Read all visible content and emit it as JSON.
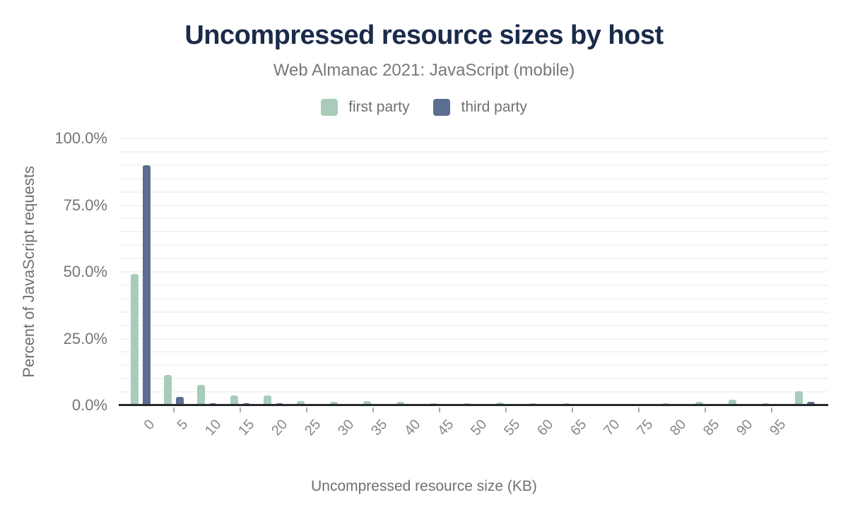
{
  "chart_data": {
    "type": "bar",
    "title": "Uncompressed resource sizes by host",
    "subtitle": "Web Almanac 2021: JavaScript (mobile)",
    "xlabel": "Uncompressed resource size (KB)",
    "ylabel": "Percent of JavaScript requests",
    "categories": [
      "0",
      "5",
      "10",
      "15",
      "20",
      "25",
      "30",
      "35",
      "40",
      "45",
      "50",
      "55",
      "60",
      "65",
      "70",
      "75",
      "80",
      "85",
      "90",
      "95",
      ""
    ],
    "series": [
      {
        "key": "first-party",
        "name": "first party",
        "color": "#a8ccb9",
        "values": [
          49.2,
          11.5,
          7.7,
          3.8,
          3.6,
          1.7,
          1.2,
          1.6,
          1.2,
          0.9,
          0.8,
          1.0,
          0.9,
          0.8,
          0.1,
          0.1,
          0.8,
          1.2,
          2.1,
          0.8,
          5.3
        ]
      },
      {
        "key": "third-party",
        "name": "third party",
        "color": "#5b6d90",
        "values": [
          89.9,
          3.2,
          0.9,
          0.8,
          0.7,
          0.2,
          0.1,
          0.1,
          0.1,
          0.1,
          0.1,
          0.1,
          0.1,
          0.1,
          0.0,
          0.0,
          0.1,
          0.1,
          0.2,
          0.1,
          1.3
        ]
      }
    ],
    "y_axis": {
      "min": 0,
      "max": 100,
      "minor_gridline_step_percent": 5,
      "ticks": [
        {
          "label": "100.0%",
          "value": 100
        },
        {
          "label": "75.0%",
          "value": 75
        },
        {
          "label": "50.0%",
          "value": 50
        },
        {
          "label": "25.0%",
          "value": 25
        },
        {
          "label": "0.0%",
          "value": 0
        }
      ]
    },
    "legend_position": "top",
    "grid": "horizontal"
  },
  "colors": {
    "title": "#1a2b4a",
    "subtitle": "#76787c",
    "axis_line": "#26282b",
    "gridline": "#f3f3f3",
    "tick_label": "#85878c",
    "first_party": "#a8ccb9",
    "third_party": "#5b6d90"
  }
}
